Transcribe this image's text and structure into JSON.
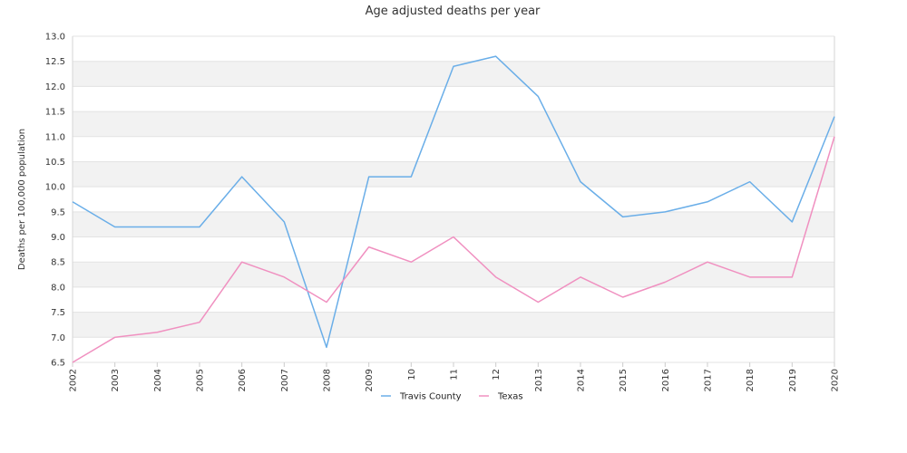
{
  "chart_data": {
    "type": "line",
    "title": "Age adjusted deaths per year",
    "xlabel": "",
    "ylabel": "Deaths per 100,000 population",
    "ylim": [
      6.5,
      13.0
    ],
    "ytick_step": 0.5,
    "categories": [
      "2002",
      "2003",
      "2004",
      "2005",
      "2006",
      "2007",
      "2008",
      "2009",
      "10",
      "11",
      "12",
      "2013",
      "2014",
      "2015",
      "2016",
      "2017",
      "2018",
      "2019",
      "2020"
    ],
    "series": [
      {
        "name": "Travis County",
        "color": "#6aaee8",
        "values": [
          9.7,
          9.2,
          9.2,
          9.2,
          10.2,
          9.3,
          6.8,
          10.2,
          10.2,
          12.4,
          12.6,
          11.8,
          10.1,
          9.4,
          9.5,
          9.7,
          10.1,
          9.3,
          11.4
        ]
      },
      {
        "name": "Texas",
        "color": "#f090c0",
        "values": [
          6.5,
          7.0,
          7.1,
          7.3,
          8.5,
          8.2,
          7.7,
          8.8,
          8.5,
          9.0,
          8.2,
          7.7,
          8.2,
          7.8,
          8.1,
          8.5,
          8.2,
          8.2,
          11.0
        ]
      }
    ],
    "grid": true,
    "band_color": "#f2f2f2",
    "legend_position": "bottom"
  }
}
